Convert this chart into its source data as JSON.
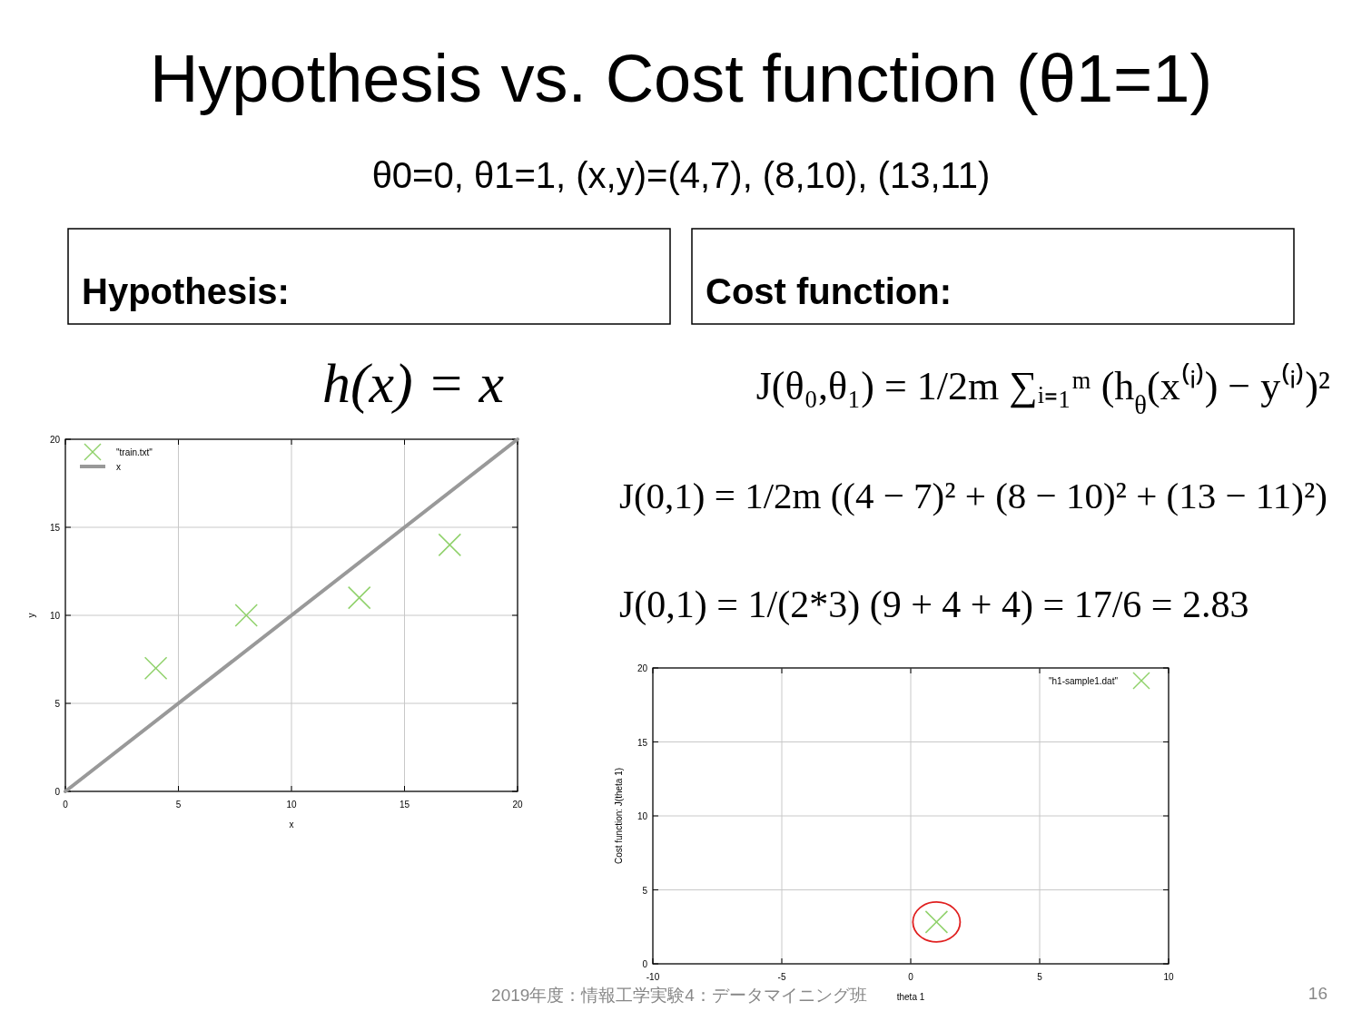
{
  "chart_data": [
    {
      "type": "scatter",
      "title": "Hypothesis vs. Cost function (θ1=1)",
      "subtitle": "θ0=0, θ1=1, (x,y)=(4,7), (8,10), (13,11)",
      "xlabel": "x",
      "ylabel": "y",
      "annotations": [
        "Hypothesis:",
        "h(x) = x"
      ],
      "series": [
        {
          "name": "\"train.txt\"",
          "color": "#8fd16a",
          "x": [
            4,
            8,
            13,
            17
          ],
          "values": [
            7,
            10,
            11,
            14
          ]
        },
        {
          "name": "x",
          "type": "line",
          "marker": "none",
          "color": "#999999",
          "x": [
            0,
            20
          ],
          "values": [
            0,
            20
          ]
        }
      ],
      "marker": "cross",
      "xlim": [
        0,
        20
      ],
      "xticks": [
        0,
        5,
        10,
        15,
        20
      ],
      "ylim": [
        0,
        20
      ],
      "yticks": [
        0,
        5,
        10,
        15,
        20
      ],
      "grid": true,
      "legend": "top left"
    },
    {
      "type": "scatter",
      "xlabel": "theta 1",
      "ylabel": "Cost function: J(theta 1)",
      "annotations": [
        "Cost function:",
        "J(θ₀,θ₁) = 1/2m ∑ᵢ₌₁ᵐ (h$_{θ}$(x⁽ⁱ⁾) − y⁽ⁱ⁾)²",
        "J(0,1) = 1/2m ((4 − 7)² + (8 − 10)² + (13 − 11)²)",
        "J(0,1) = 1/(2*3) (9 + 4 + 4) = 17/6 = 2.83",
        "2019年度：情報工学実験4：データマイニング班",
        "16"
      ],
      "series": [
        {
          "name": "\"h1-sample1.dat\"",
          "color": "#8fd16a",
          "x": [
            1
          ],
          "values": [
            2.83
          ]
        }
      ],
      "marker": "cross",
      "xlim": [
        -10,
        10
      ],
      "xticks": [
        -10,
        -5,
        0,
        5,
        10
      ],
      "ylim": [
        0,
        20
      ],
      "yticks": [
        0,
        5,
        10,
        15,
        20
      ],
      "grid": true,
      "legend": "top right"
    }
  ]
}
